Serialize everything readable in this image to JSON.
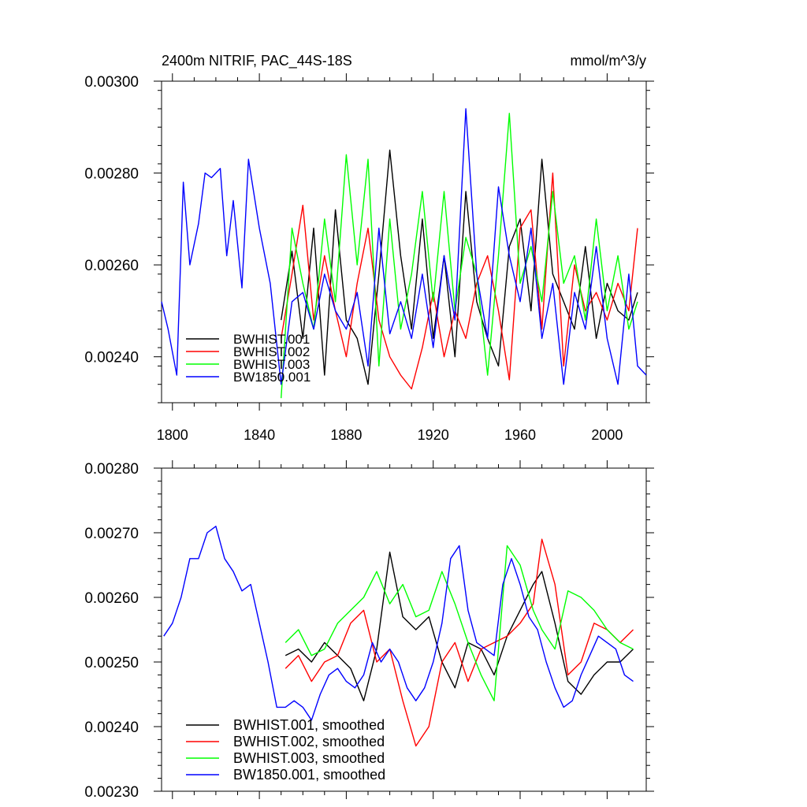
{
  "chart_data": [
    {
      "type": "line",
      "title_left": "2400m NITRIF, PAC_44S-18S",
      "title_right": "mmol/m^3/y",
      "xlim": [
        1795,
        2018
      ],
      "ylim": [
        0.0023,
        0.003
      ],
      "xticks": [
        1800,
        1840,
        1880,
        1920,
        1960,
        2000
      ],
      "xtick_labels": [
        "1800",
        "1840",
        "1880",
        "1920",
        "1960",
        "2000"
      ],
      "yticks": [
        0.0024,
        0.0026,
        0.0028,
        0.003
      ],
      "ytick_labels": [
        "0.00240",
        "0.00260",
        "0.00280",
        "0.00300"
      ],
      "legend": {
        "position": "bottom-left"
      },
      "series": [
        {
          "name": "BWHIST.001",
          "color": "#000000",
          "x": [
            1850,
            1855,
            1860,
            1865,
            1870,
            1875,
            1880,
            1885,
            1890,
            1895,
            1900,
            1905,
            1910,
            1915,
            1920,
            1925,
            1930,
            1935,
            1940,
            1945,
            1950,
            1955,
            1960,
            1965,
            1970,
            1975,
            1980,
            1985,
            1990,
            1995,
            2000,
            2005,
            2010,
            2014
          ],
          "y": [
            0.00248,
            0.00263,
            0.00244,
            0.00268,
            0.00236,
            0.00272,
            0.00248,
            0.00244,
            0.00234,
            0.00258,
            0.00285,
            0.00262,
            0.00246,
            0.0027,
            0.00244,
            0.00262,
            0.0024,
            0.00276,
            0.00252,
            0.00244,
            0.00238,
            0.00264,
            0.0027,
            0.0025,
            0.00283,
            0.00258,
            0.00252,
            0.00246,
            0.00264,
            0.00244,
            0.00256,
            0.0025,
            0.00248,
            0.00254
          ]
        },
        {
          "name": "BWHIST.002",
          "color": "#ff0000",
          "x": [
            1850,
            1855,
            1860,
            1865,
            1870,
            1875,
            1880,
            1885,
            1890,
            1895,
            1900,
            1905,
            1910,
            1915,
            1920,
            1925,
            1930,
            1935,
            1940,
            1945,
            1950,
            1955,
            1960,
            1965,
            1970,
            1975,
            1980,
            1985,
            1990,
            1995,
            2000,
            2005,
            2010,
            2014
          ],
          "y": [
            0.00244,
            0.00258,
            0.00273,
            0.00248,
            0.00262,
            0.0025,
            0.0024,
            0.00256,
            0.00268,
            0.00248,
            0.0024,
            0.00236,
            0.00233,
            0.00242,
            0.00254,
            0.0024,
            0.0025,
            0.00244,
            0.00256,
            0.00262,
            0.0025,
            0.00235,
            0.00268,
            0.00272,
            0.00246,
            0.0028,
            0.00238,
            0.0026,
            0.0025,
            0.00254,
            0.00248,
            0.00256,
            0.0025,
            0.00268
          ]
        },
        {
          "name": "BWHIST.003",
          "color": "#00ff00",
          "x": [
            1850,
            1855,
            1860,
            1865,
            1870,
            1875,
            1880,
            1885,
            1890,
            1895,
            1900,
            1905,
            1910,
            1915,
            1920,
            1925,
            1930,
            1935,
            1940,
            1945,
            1950,
            1955,
            1960,
            1965,
            1970,
            1975,
            1980,
            1985,
            1990,
            1995,
            2000,
            2005,
            2010,
            2014
          ],
          "y": [
            0.00231,
            0.00268,
            0.00256,
            0.00246,
            0.0027,
            0.00252,
            0.00284,
            0.0026,
            0.00283,
            0.00238,
            0.0027,
            0.00246,
            0.00258,
            0.00276,
            0.00252,
            0.00276,
            0.0025,
            0.00266,
            0.00258,
            0.00236,
            0.00262,
            0.00293,
            0.00256,
            0.00264,
            0.00252,
            0.00276,
            0.00256,
            0.00262,
            0.00248,
            0.0027,
            0.0025,
            0.00262,
            0.00246,
            0.00252
          ]
        },
        {
          "name": "BW1850.001",
          "color": "#0000ff",
          "x": [
            1795,
            1798,
            1802,
            1805,
            1808,
            1812,
            1815,
            1818,
            1822,
            1825,
            1828,
            1832,
            1835,
            1840,
            1845,
            1850,
            1855,
            1860,
            1865,
            1870,
            1875,
            1880,
            1885,
            1890,
            1895,
            1900,
            1905,
            1910,
            1915,
            1920,
            1925,
            1930,
            1935,
            1940,
            1945,
            1950,
            1955,
            1960,
            1965,
            1970,
            1975,
            1980,
            1985,
            1990,
            1995,
            2000,
            2005,
            2010,
            2014,
            2018
          ],
          "y": [
            0.00252,
            0.00246,
            0.00236,
            0.00278,
            0.0026,
            0.00269,
            0.0028,
            0.00279,
            0.00281,
            0.00262,
            0.00274,
            0.00255,
            0.00283,
            0.00268,
            0.00256,
            0.00234,
            0.00252,
            0.00254,
            0.00246,
            0.00258,
            0.0025,
            0.00246,
            0.00254,
            0.00238,
            0.00268,
            0.00245,
            0.00252,
            0.00244,
            0.00258,
            0.00242,
            0.00262,
            0.00248,
            0.00294,
            0.00258,
            0.00244,
            0.00277,
            0.00262,
            0.00252,
            0.00268,
            0.00244,
            0.00256,
            0.00234,
            0.00254,
            0.00246,
            0.00264,
            0.00244,
            0.00234,
            0.00258,
            0.00238,
            0.00236
          ]
        }
      ]
    },
    {
      "type": "line",
      "xlim": [
        1795,
        2018
      ],
      "ylim": [
        0.0023,
        0.0028
      ],
      "xticks": [
        1800,
        1840,
        1880,
        1920,
        1960,
        2000
      ],
      "yticks": [
        0.0023,
        0.0024,
        0.0025,
        0.0026,
        0.0027,
        0.0028
      ],
      "ytick_labels": [
        "0.00230",
        "0.00240",
        "0.00250",
        "0.00260",
        "0.00270",
        "0.00280"
      ],
      "legend": {
        "position": "bottom-left"
      },
      "series": [
        {
          "name": "BWHIST.001, smoothed",
          "color": "#000000",
          "x": [
            1852,
            1858,
            1864,
            1870,
            1876,
            1882,
            1888,
            1894,
            1900,
            1906,
            1912,
            1918,
            1924,
            1930,
            1936,
            1942,
            1948,
            1954,
            1960,
            1966,
            1970,
            1976,
            1982,
            1988,
            1994,
            2000,
            2006,
            2012
          ],
          "y": [
            0.00251,
            0.00252,
            0.0025,
            0.00253,
            0.00251,
            0.00249,
            0.00244,
            0.00252,
            0.00267,
            0.00257,
            0.00255,
            0.00257,
            0.0025,
            0.00246,
            0.00253,
            0.00252,
            0.00248,
            0.00254,
            0.00258,
            0.00262,
            0.00264,
            0.00256,
            0.00247,
            0.00245,
            0.00248,
            0.0025,
            0.0025,
            0.00252
          ]
        },
        {
          "name": "BWHIST.002, smoothed",
          "color": "#ff0000",
          "x": [
            1852,
            1858,
            1864,
            1870,
            1876,
            1882,
            1888,
            1894,
            1900,
            1906,
            1912,
            1918,
            1924,
            1930,
            1936,
            1942,
            1948,
            1954,
            1960,
            1966,
            1970,
            1976,
            1982,
            1988,
            1994,
            2000,
            2006,
            2012
          ],
          "y": [
            0.00249,
            0.00251,
            0.00247,
            0.0025,
            0.00251,
            0.00256,
            0.00258,
            0.0025,
            0.00252,
            0.00244,
            0.00237,
            0.0024,
            0.0025,
            0.00253,
            0.00247,
            0.00252,
            0.00253,
            0.00254,
            0.00256,
            0.00259,
            0.00269,
            0.00262,
            0.00248,
            0.0025,
            0.00256,
            0.00255,
            0.00253,
            0.00255
          ]
        },
        {
          "name": "BWHIST.003, smoothed",
          "color": "#00ff00",
          "x": [
            1852,
            1858,
            1864,
            1870,
            1876,
            1882,
            1888,
            1894,
            1900,
            1906,
            1912,
            1918,
            1924,
            1930,
            1936,
            1942,
            1948,
            1954,
            1960,
            1966,
            1970,
            1976,
            1982,
            1988,
            1994,
            2000,
            2006,
            2012
          ],
          "y": [
            0.00253,
            0.00255,
            0.00251,
            0.00252,
            0.00256,
            0.00258,
            0.0026,
            0.00264,
            0.00259,
            0.00262,
            0.00257,
            0.00258,
            0.00264,
            0.00259,
            0.00253,
            0.00248,
            0.00244,
            0.00268,
            0.00265,
            0.00258,
            0.00255,
            0.00252,
            0.00261,
            0.0026,
            0.00258,
            0.00255,
            0.00253,
            0.00252
          ]
        },
        {
          "name": "BW1850.001, smoothed",
          "color": "#0000ff",
          "x": [
            1796,
            1800,
            1804,
            1808,
            1812,
            1816,
            1820,
            1824,
            1828,
            1832,
            1836,
            1840,
            1844,
            1848,
            1852,
            1856,
            1860,
            1864,
            1868,
            1872,
            1876,
            1880,
            1884,
            1888,
            1892,
            1896,
            1900,
            1904,
            1908,
            1912,
            1916,
            1920,
            1924,
            1928,
            1932,
            1936,
            1940,
            1944,
            1948,
            1952,
            1956,
            1960,
            1964,
            1968,
            1972,
            1976,
            1980,
            1984,
            1988,
            1992,
            1996,
            2000,
            2004,
            2008,
            2012
          ],
          "y": [
            0.00254,
            0.00256,
            0.0026,
            0.00266,
            0.00266,
            0.0027,
            0.00271,
            0.00266,
            0.00264,
            0.00261,
            0.00262,
            0.00256,
            0.0025,
            0.00243,
            0.00243,
            0.00244,
            0.00243,
            0.00241,
            0.00245,
            0.00248,
            0.00249,
            0.00247,
            0.00246,
            0.00248,
            0.00253,
            0.0025,
            0.00252,
            0.0025,
            0.00246,
            0.00244,
            0.00246,
            0.0025,
            0.00256,
            0.00266,
            0.00268,
            0.00258,
            0.00253,
            0.00252,
            0.00251,
            0.00262,
            0.00266,
            0.00262,
            0.00257,
            0.00255,
            0.0025,
            0.00246,
            0.00243,
            0.00244,
            0.00248,
            0.00251,
            0.00254,
            0.00253,
            0.00252,
            0.00248,
            0.00247
          ]
        }
      ]
    }
  ]
}
